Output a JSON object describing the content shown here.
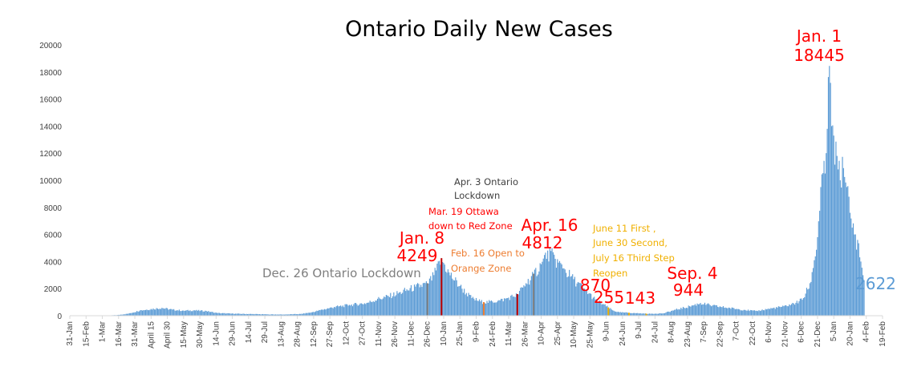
{
  "chart_data": {
    "type": "bar",
    "title": "Ontario Daily New Cases",
    "ylim": [
      0,
      20000
    ],
    "yticks": [
      "0",
      "2000",
      "4000",
      "6000",
      "8000",
      "10000",
      "12000",
      "14000",
      "16000",
      "18000",
      "20000"
    ],
    "date_range": [
      "2020-01-31",
      "2022-02-19"
    ],
    "xtick_labels": [
      "31-Jan",
      "15-Feb",
      "1-Mar",
      "16-Mar",
      "31-Mar",
      "April 15",
      "April 30",
      "15-May",
      "30-May",
      "14-Jun",
      "29-Jun",
      "14-Jul",
      "29-Jul",
      "13-Aug",
      "28-Aug",
      "12-Sep",
      "27-Sep",
      "12-Oct",
      "27-Oct",
      "11-Nov",
      "26-Nov",
      "11-Dec",
      "26-Dec",
      "10-Jan",
      "25-Jan",
      "9-Feb",
      "24-Feb",
      "11-Mar",
      "26-Mar",
      "10-Apr",
      "25-Apr",
      "10-May",
      "25-May",
      "9-Jun",
      "24-Jun",
      "9-Jul",
      "24-Jul",
      "8-Aug",
      "23-Aug",
      "7-Sep",
      "22-Sep",
      "7-Oct",
      "22-Oct",
      "6-Nov",
      "21-Nov",
      "6-Dec",
      "21-Dec",
      "5-Jan",
      "20-Jan",
      "4-Feb",
      "19-Feb"
    ],
    "bar_color": "#5b9bd5",
    "series": [
      {
        "x": "2020-02-29",
        "y": 0
      },
      {
        "x": "2020-03-15",
        "y": 50
      },
      {
        "x": "2020-03-25",
        "y": 150
      },
      {
        "x": "2020-04-05",
        "y": 400
      },
      {
        "x": "2020-04-15",
        "y": 500
      },
      {
        "x": "2020-04-25",
        "y": 580
      },
      {
        "x": "2020-05-05",
        "y": 450
      },
      {
        "x": "2020-05-15",
        "y": 380
      },
      {
        "x": "2020-05-25",
        "y": 400
      },
      {
        "x": "2020-06-05",
        "y": 350
      },
      {
        "x": "2020-06-15",
        "y": 200
      },
      {
        "x": "2020-06-30",
        "y": 150
      },
      {
        "x": "2020-07-15",
        "y": 130
      },
      {
        "x": "2020-08-01",
        "y": 100
      },
      {
        "x": "2020-08-15",
        "y": 90
      },
      {
        "x": "2020-08-31",
        "y": 130
      },
      {
        "x": "2020-09-10",
        "y": 250
      },
      {
        "x": "2020-09-20",
        "y": 450
      },
      {
        "x": "2020-10-01",
        "y": 650
      },
      {
        "x": "2020-10-15",
        "y": 800
      },
      {
        "x": "2020-10-31",
        "y": 950
      },
      {
        "x": "2020-11-10",
        "y": 1250
      },
      {
        "x": "2020-11-20",
        "y": 1450
      },
      {
        "x": "2020-12-01",
        "y": 1750
      },
      {
        "x": "2020-12-15",
        "y": 2150
      },
      {
        "x": "2020-12-26",
        "y": 2400
      },
      {
        "x": "2021-01-01",
        "y": 3000
      },
      {
        "x": "2021-01-08",
        "y": 4249
      },
      {
        "x": "2021-01-15",
        "y": 3200
      },
      {
        "x": "2021-01-25",
        "y": 2200
      },
      {
        "x": "2021-02-05",
        "y": 1300
      },
      {
        "x": "2021-02-16",
        "y": 1000
      },
      {
        "x": "2021-03-01",
        "y": 1100
      },
      {
        "x": "2021-03-10",
        "y": 1300
      },
      {
        "x": "2021-03-19",
        "y": 1600
      },
      {
        "x": "2021-03-27",
        "y": 2400
      },
      {
        "x": "2021-04-03",
        "y": 3100
      },
      {
        "x": "2021-04-10",
        "y": 3800
      },
      {
        "x": "2021-04-16",
        "y": 4812
      },
      {
        "x": "2021-04-23",
        "y": 4200
      },
      {
        "x": "2021-05-01",
        "y": 3500
      },
      {
        "x": "2021-05-10",
        "y": 2700
      },
      {
        "x": "2021-05-20",
        "y": 2000
      },
      {
        "x": "2021-05-30",
        "y": 1200
      },
      {
        "x": "2021-06-06",
        "y": 870
      },
      {
        "x": "2021-06-15",
        "y": 400
      },
      {
        "x": "2021-06-21",
        "y": 255
      },
      {
        "x": "2021-07-05",
        "y": 200
      },
      {
        "x": "2021-07-18",
        "y": 143
      },
      {
        "x": "2021-08-01",
        "y": 180
      },
      {
        "x": "2021-08-12",
        "y": 450
      },
      {
        "x": "2021-08-25",
        "y": 700
      },
      {
        "x": "2021-09-04",
        "y": 944
      },
      {
        "x": "2021-09-15",
        "y": 750
      },
      {
        "x": "2021-10-01",
        "y": 580
      },
      {
        "x": "2021-10-15",
        "y": 430
      },
      {
        "x": "2021-10-25",
        "y": 350
      },
      {
        "x": "2021-11-05",
        "y": 500
      },
      {
        "x": "2021-11-20",
        "y": 700
      },
      {
        "x": "2021-12-01",
        "y": 950
      },
      {
        "x": "2021-12-08",
        "y": 1300
      },
      {
        "x": "2021-12-14",
        "y": 2400
      },
      {
        "x": "2021-12-18",
        "y": 4100
      },
      {
        "x": "2021-12-21",
        "y": 5800
      },
      {
        "x": "2021-12-24",
        "y": 9500
      },
      {
        "x": "2021-12-28",
        "y": 10500
      },
      {
        "x": "2021-12-30",
        "y": 13800
      },
      {
        "x": "2022-01-01",
        "y": 18445
      },
      {
        "x": "2022-01-03",
        "y": 14000
      },
      {
        "x": "2022-01-05",
        "y": 13300
      },
      {
        "x": "2022-01-08",
        "y": 11800
      },
      {
        "x": "2022-01-11",
        "y": 10000
      },
      {
        "x": "2022-01-14",
        "y": 10900
      },
      {
        "x": "2022-01-17",
        "y": 9500
      },
      {
        "x": "2022-01-20",
        "y": 7600
      },
      {
        "x": "2022-01-24",
        "y": 6000
      },
      {
        "x": "2022-01-27",
        "y": 5600
      },
      {
        "x": "2022-01-30",
        "y": 4000
      },
      {
        "x": "2022-02-02",
        "y": 2622
      }
    ],
    "markers": [
      {
        "x": "2020-12-26",
        "color": "#7f7f7f"
      },
      {
        "x": "2021-01-08",
        "color": "#c00000"
      },
      {
        "x": "2021-02-16",
        "color": "#ed7d31"
      },
      {
        "x": "2021-03-19",
        "color": "#c00000"
      },
      {
        "x": "2021-04-03",
        "color": "#7f7f7f"
      },
      {
        "x": "2021-06-11",
        "color": "#f0b000"
      },
      {
        "x": "2021-06-30",
        "color": "#f0b000"
      },
      {
        "x": "2021-07-16",
        "color": "#f0b000"
      }
    ],
    "annotations": [
      {
        "id": "jan1",
        "lines": [
          "Jan. 1",
          "18445"
        ],
        "color": "red",
        "size": "big"
      },
      {
        "id": "jan8",
        "lines": [
          "Jan. 8",
          "4249"
        ],
        "color": "red",
        "size": "big"
      },
      {
        "id": "apr16",
        "lines": [
          "Apr. 16",
          "4812"
        ],
        "color": "red",
        "size": "big"
      },
      {
        "id": "v870",
        "lines": [
          "870"
        ],
        "color": "red",
        "size": "big"
      },
      {
        "id": "v255",
        "lines": [
          "255"
        ],
        "color": "red",
        "size": "big"
      },
      {
        "id": "v143",
        "lines": [
          "143"
        ],
        "color": "red",
        "size": "big"
      },
      {
        "id": "sep4",
        "lines": [
          "Sep. 4",
          "944"
        ],
        "color": "red",
        "size": "big"
      },
      {
        "id": "dec26",
        "lines": [
          "Dec. 26 Ontario Lockdown"
        ],
        "color": "gray"
      },
      {
        "id": "apr3",
        "lines": [
          "Apr. 3 Ontario",
          "Lockdown"
        ],
        "color": "dark"
      },
      {
        "id": "mar19",
        "lines": [
          "Mar. 19 Ottawa",
          "down to Red Zone"
        ],
        "color": "red",
        "size": "small"
      },
      {
        "id": "feb16",
        "lines": [
          "Feb. 16 Open to",
          "Orange Zone"
        ],
        "color": "orange"
      },
      {
        "id": "june",
        "lines": [
          "June 11 First ,",
          "June 30 Second,",
          "July 16 Third Step",
          "Reopen"
        ],
        "color": "gold"
      },
      {
        "id": "v2622",
        "lines": [
          "2622"
        ],
        "color": "blue"
      }
    ]
  }
}
